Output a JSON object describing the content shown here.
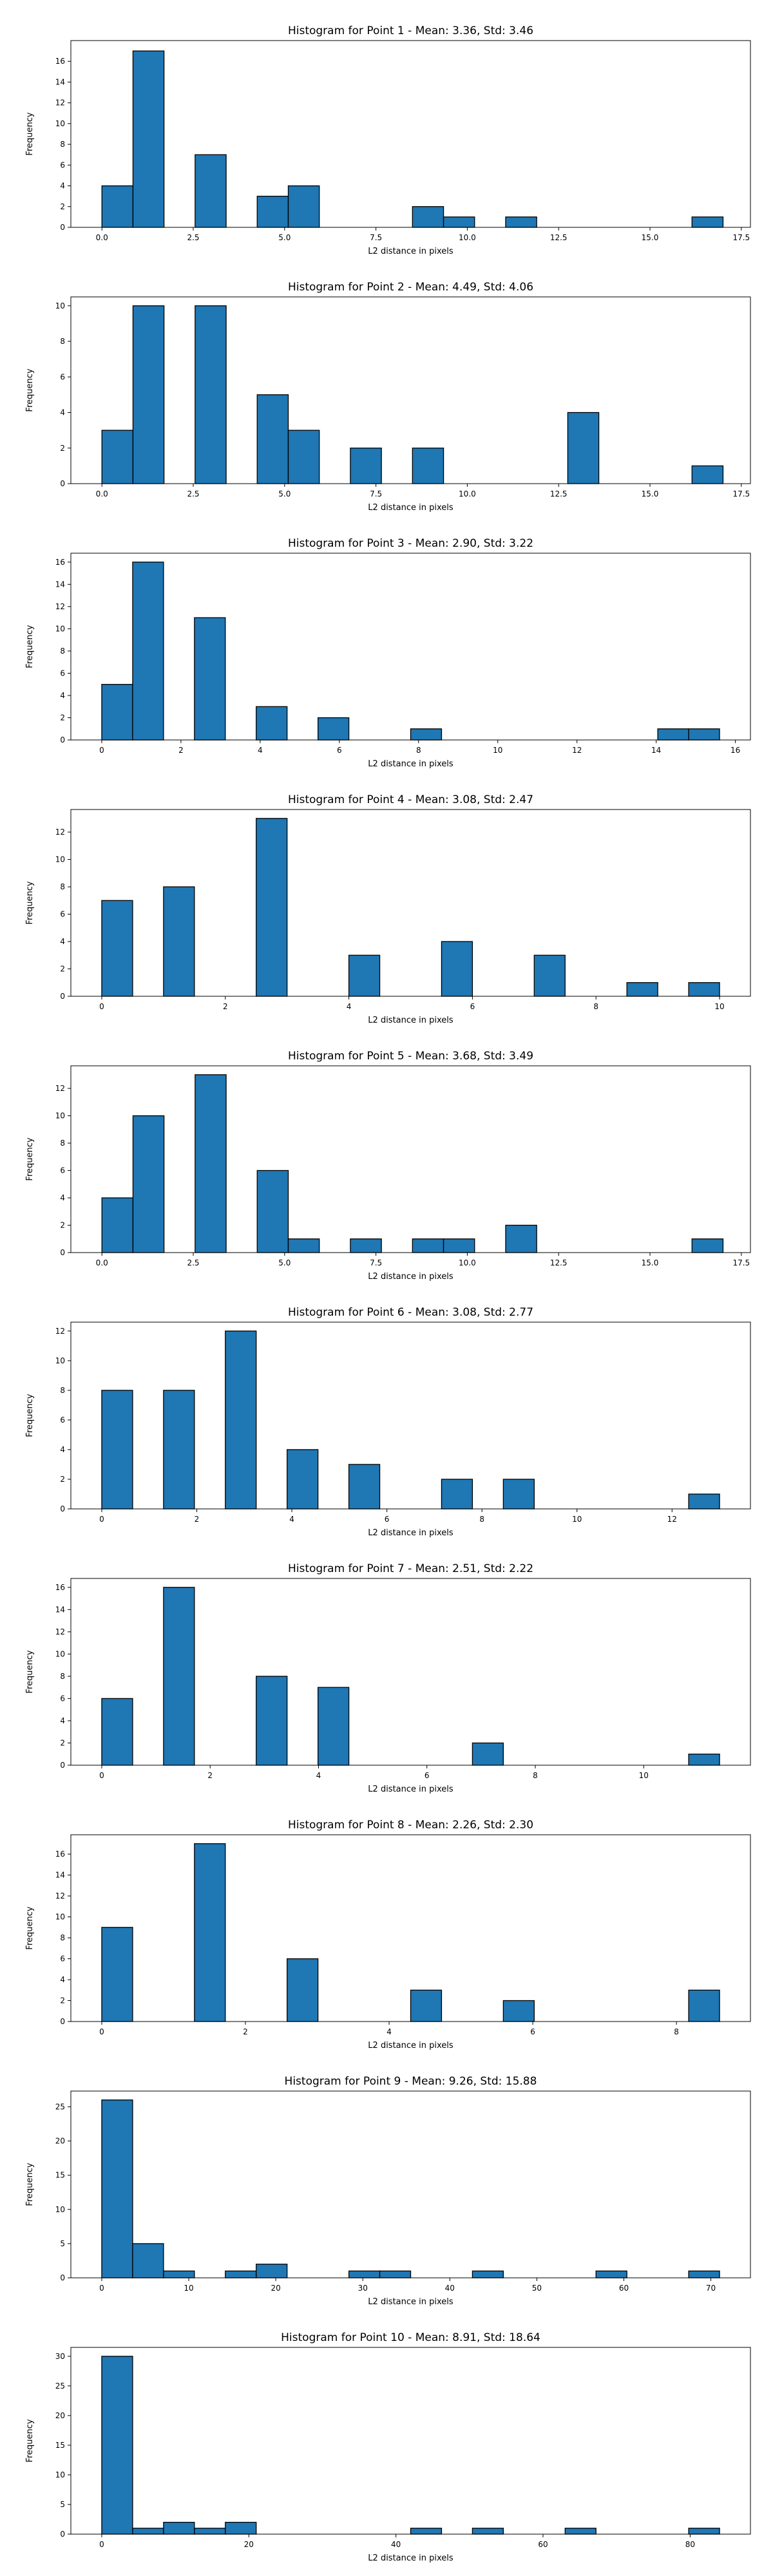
{
  "figure": {
    "bar_color": "#1f77b4",
    "edge_color": "#000000",
    "background": "#ffffff"
  },
  "chart_data": [
    {
      "type": "histogram",
      "title": "Histogram for Point 1 - Mean: 3.36, Std: 3.46",
      "xlabel": "L2 distance in pixels",
      "ylabel": "Frequency",
      "xlim": [
        -0.85,
        17.75
      ],
      "ylim": [
        0,
        18
      ],
      "xticks": [
        0.0,
        2.5,
        5.0,
        7.5,
        10.0,
        12.5,
        15.0,
        17.5
      ],
      "xtick_labels": [
        "0.0",
        "2.5",
        "5.0",
        "7.5",
        "10.0",
        "12.5",
        "15.0",
        "17.5"
      ],
      "yticks": [
        0,
        2,
        4,
        6,
        8,
        10,
        12,
        14,
        16
      ],
      "bins": [
        {
          "x0": 0.0,
          "x1": 0.85,
          "count": 4
        },
        {
          "x0": 0.85,
          "x1": 1.7,
          "count": 17
        },
        {
          "x0": 2.55,
          "x1": 3.4,
          "count": 7
        },
        {
          "x0": 4.25,
          "x1": 5.1,
          "count": 3
        },
        {
          "x0": 5.1,
          "x1": 5.95,
          "count": 4
        },
        {
          "x0": 8.5,
          "x1": 9.35,
          "count": 2
        },
        {
          "x0": 9.35,
          "x1": 10.2,
          "count": 1
        },
        {
          "x0": 11.05,
          "x1": 11.9,
          "count": 1
        },
        {
          "x0": 16.15,
          "x1": 17.0,
          "count": 1
        }
      ]
    },
    {
      "type": "histogram",
      "title": "Histogram for Point 2 - Mean: 4.49, Std: 4.06",
      "xlabel": "L2 distance in pixels",
      "ylabel": "Frequency",
      "xlim": [
        -0.85,
        17.75
      ],
      "ylim": [
        0,
        10.5
      ],
      "xticks": [
        0.0,
        2.5,
        5.0,
        7.5,
        10.0,
        12.5,
        15.0,
        17.5
      ],
      "xtick_labels": [
        "0.0",
        "2.5",
        "5.0",
        "7.5",
        "10.0",
        "12.5",
        "15.0",
        "17.5"
      ],
      "yticks": [
        0,
        2,
        4,
        6,
        8,
        10
      ],
      "bins": [
        {
          "x0": 0.0,
          "x1": 0.85,
          "count": 3
        },
        {
          "x0": 0.85,
          "x1": 1.7,
          "count": 10
        },
        {
          "x0": 2.55,
          "x1": 3.4,
          "count": 10
        },
        {
          "x0": 4.25,
          "x1": 5.1,
          "count": 5
        },
        {
          "x0": 5.1,
          "x1": 5.95,
          "count": 3
        },
        {
          "x0": 6.8,
          "x1": 7.65,
          "count": 2
        },
        {
          "x0": 8.5,
          "x1": 9.35,
          "count": 2
        },
        {
          "x0": 12.75,
          "x1": 13.6,
          "count": 4
        },
        {
          "x0": 16.15,
          "x1": 17.0,
          "count": 1
        }
      ]
    },
    {
      "type": "histogram",
      "title": "Histogram for Point 3 - Mean: 2.90, Std: 3.22",
      "xlabel": "L2 distance in pixels",
      "ylabel": "Frequency",
      "xlim": [
        -0.78,
        16.38
      ],
      "ylim": [
        0,
        16.8
      ],
      "xticks": [
        0,
        2,
        4,
        6,
        8,
        10,
        12,
        14,
        16
      ],
      "xtick_labels": [
        "0",
        "2",
        "4",
        "6",
        "8",
        "10",
        "12",
        "14",
        "16"
      ],
      "yticks": [
        0,
        2,
        4,
        6,
        8,
        10,
        12,
        14,
        16
      ],
      "bins": [
        {
          "x0": 0.0,
          "x1": 0.78,
          "count": 5
        },
        {
          "x0": 0.78,
          "x1": 1.56,
          "count": 16
        },
        {
          "x0": 2.34,
          "x1": 3.12,
          "count": 11
        },
        {
          "x0": 3.9,
          "x1": 4.68,
          "count": 3
        },
        {
          "x0": 5.46,
          "x1": 6.24,
          "count": 2
        },
        {
          "x0": 7.8,
          "x1": 8.58,
          "count": 1
        },
        {
          "x0": 14.04,
          "x1": 14.82,
          "count": 1
        },
        {
          "x0": 14.82,
          "x1": 15.6,
          "count": 1
        }
      ]
    },
    {
      "type": "histogram",
      "title": "Histogram for Point 4 - Mean: 3.08, Std: 2.47",
      "xlabel": "L2 distance in pixels",
      "ylabel": "Frequency",
      "xlim": [
        -0.5,
        10.5
      ],
      "ylim": [
        0,
        13.65
      ],
      "xticks": [
        0,
        2,
        4,
        6,
        8,
        10
      ],
      "xtick_labels": [
        "0",
        "2",
        "4",
        "6",
        "8",
        "10"
      ],
      "yticks": [
        0,
        2,
        4,
        6,
        8,
        10,
        12
      ],
      "bins": [
        {
          "x0": 0.0,
          "x1": 0.5,
          "count": 7
        },
        {
          "x0": 1.0,
          "x1": 1.5,
          "count": 8
        },
        {
          "x0": 2.5,
          "x1": 3.0,
          "count": 13
        },
        {
          "x0": 4.0,
          "x1": 4.5,
          "count": 3
        },
        {
          "x0": 5.5,
          "x1": 6.0,
          "count": 4
        },
        {
          "x0": 7.0,
          "x1": 7.5,
          "count": 3
        },
        {
          "x0": 8.5,
          "x1": 9.0,
          "count": 1
        },
        {
          "x0": 9.5,
          "x1": 10.0,
          "count": 1
        }
      ]
    },
    {
      "type": "histogram",
      "title": "Histogram for Point 5 - Mean: 3.68, Std: 3.49",
      "xlabel": "L2 distance in pixels",
      "ylabel": "Frequency",
      "xlim": [
        -0.85,
        17.75
      ],
      "ylim": [
        0,
        13.65
      ],
      "xticks": [
        0.0,
        2.5,
        5.0,
        7.5,
        10.0,
        12.5,
        15.0,
        17.5
      ],
      "xtick_labels": [
        "0.0",
        "2.5",
        "5.0",
        "7.5",
        "10.0",
        "12.5",
        "15.0",
        "17.5"
      ],
      "yticks": [
        0,
        2,
        4,
        6,
        8,
        10,
        12
      ],
      "bins": [
        {
          "x0": 0.0,
          "x1": 0.85,
          "count": 4
        },
        {
          "x0": 0.85,
          "x1": 1.7,
          "count": 10
        },
        {
          "x0": 2.55,
          "x1": 3.4,
          "count": 13
        },
        {
          "x0": 4.25,
          "x1": 5.1,
          "count": 6
        },
        {
          "x0": 5.1,
          "x1": 5.95,
          "count": 1
        },
        {
          "x0": 6.8,
          "x1": 7.65,
          "count": 1
        },
        {
          "x0": 8.5,
          "x1": 9.35,
          "count": 1
        },
        {
          "x0": 9.35,
          "x1": 10.2,
          "count": 1
        },
        {
          "x0": 11.05,
          "x1": 11.9,
          "count": 2
        },
        {
          "x0": 16.15,
          "x1": 17.0,
          "count": 1
        }
      ]
    },
    {
      "type": "histogram",
      "title": "Histogram for Point 6 - Mean: 3.08, Std: 2.77",
      "xlabel": "L2 distance in pixels",
      "ylabel": "Frequency",
      "xlim": [
        -0.65,
        13.65
      ],
      "ylim": [
        0,
        12.6
      ],
      "xticks": [
        0,
        2,
        4,
        6,
        8,
        10,
        12
      ],
      "xtick_labels": [
        "0",
        "2",
        "4",
        "6",
        "8",
        "10",
        "12"
      ],
      "yticks": [
        0,
        2,
        4,
        6,
        8,
        10,
        12
      ],
      "bins": [
        {
          "x0": 0.0,
          "x1": 0.65,
          "count": 8
        },
        {
          "x0": 1.3,
          "x1": 1.95,
          "count": 8
        },
        {
          "x0": 2.6,
          "x1": 3.25,
          "count": 12
        },
        {
          "x0": 3.9,
          "x1": 4.55,
          "count": 4
        },
        {
          "x0": 5.2,
          "x1": 5.85,
          "count": 3
        },
        {
          "x0": 7.15,
          "x1": 7.8,
          "count": 2
        },
        {
          "x0": 8.45,
          "x1": 9.1,
          "count": 2
        },
        {
          "x0": 12.35,
          "x1": 13.0,
          "count": 1
        }
      ]
    },
    {
      "type": "histogram",
      "title": "Histogram for Point 7 - Mean: 2.51, Std: 2.22",
      "xlabel": "L2 distance in pixels",
      "ylabel": "Frequency",
      "xlim": [
        -0.57,
        11.97
      ],
      "ylim": [
        0,
        16.8
      ],
      "xticks": [
        0,
        2,
        4,
        6,
        8,
        10
      ],
      "xtick_labels": [
        "0",
        "2",
        "4",
        "6",
        "8",
        "10"
      ],
      "yticks": [
        0,
        2,
        4,
        6,
        8,
        10,
        12,
        14,
        16
      ],
      "bins": [
        {
          "x0": 0.0,
          "x1": 0.57,
          "count": 6
        },
        {
          "x0": 1.14,
          "x1": 1.71,
          "count": 16
        },
        {
          "x0": 2.85,
          "x1": 3.42,
          "count": 8
        },
        {
          "x0": 3.99,
          "x1": 4.56,
          "count": 7
        },
        {
          "x0": 6.84,
          "x1": 7.41,
          "count": 2
        },
        {
          "x0": 10.83,
          "x1": 11.4,
          "count": 1
        }
      ]
    },
    {
      "type": "histogram",
      "title": "Histogram for Point 8 - Mean: 2.26, Std: 2.30",
      "xlabel": "L2 distance in pixels",
      "ylabel": "Frequency",
      "xlim": [
        -0.43,
        9.03
      ],
      "ylim": [
        0,
        17.85
      ],
      "xticks": [
        0,
        2,
        4,
        6,
        8
      ],
      "xtick_labels": [
        "0",
        "2",
        "4",
        "6",
        "8"
      ],
      "yticks": [
        0,
        2,
        4,
        6,
        8,
        10,
        12,
        14,
        16
      ],
      "bins": [
        {
          "x0": 0.0,
          "x1": 0.43,
          "count": 9
        },
        {
          "x0": 1.29,
          "x1": 1.72,
          "count": 17
        },
        {
          "x0": 2.58,
          "x1": 3.01,
          "count": 6
        },
        {
          "x0": 4.3,
          "x1": 4.73,
          "count": 3
        },
        {
          "x0": 5.59,
          "x1": 6.02,
          "count": 2
        },
        {
          "x0": 8.17,
          "x1": 8.6,
          "count": 3
        }
      ]
    },
    {
      "type": "histogram",
      "title": "Histogram for Point 9 - Mean: 9.26, Std: 15.88",
      "xlabel": "L2 distance in pixels",
      "ylabel": "Frequency",
      "xlim": [
        -3.55,
        74.55
      ],
      "ylim": [
        0,
        27.3
      ],
      "xticks": [
        0,
        10,
        20,
        30,
        40,
        50,
        60,
        70
      ],
      "xtick_labels": [
        "0",
        "10",
        "20",
        "30",
        "40",
        "50",
        "60",
        "70"
      ],
      "yticks": [
        0,
        5,
        10,
        15,
        20,
        25
      ],
      "bins": [
        {
          "x0": 0.0,
          "x1": 3.55,
          "count": 26
        },
        {
          "x0": 3.55,
          "x1": 7.1,
          "count": 5
        },
        {
          "x0": 7.1,
          "x1": 10.65,
          "count": 1
        },
        {
          "x0": 14.2,
          "x1": 17.75,
          "count": 1
        },
        {
          "x0": 17.75,
          "x1": 21.3,
          "count": 2
        },
        {
          "x0": 28.4,
          "x1": 31.95,
          "count": 1
        },
        {
          "x0": 31.95,
          "x1": 35.5,
          "count": 1
        },
        {
          "x0": 42.6,
          "x1": 46.15,
          "count": 1
        },
        {
          "x0": 56.8,
          "x1": 60.35,
          "count": 1
        },
        {
          "x0": 67.45,
          "x1": 71.0,
          "count": 1
        }
      ]
    },
    {
      "type": "histogram",
      "title": "Histogram for Point 10 - Mean: 8.91, Std: 18.64",
      "xlabel": "L2 distance in pixels",
      "ylabel": "Frequency",
      "xlim": [
        -4.2,
        88.2
      ],
      "ylim": [
        0,
        31.5
      ],
      "xticks": [
        0,
        20,
        40,
        60,
        80
      ],
      "xtick_labels": [
        "0",
        "20",
        "40",
        "60",
        "80"
      ],
      "yticks": [
        0,
        5,
        10,
        15,
        20,
        25,
        30
      ],
      "bins": [
        {
          "x0": 0.0,
          "x1": 4.2,
          "count": 30
        },
        {
          "x0": 4.2,
          "x1": 8.4,
          "count": 1
        },
        {
          "x0": 8.4,
          "x1": 12.6,
          "count": 2
        },
        {
          "x0": 12.6,
          "x1": 16.8,
          "count": 1
        },
        {
          "x0": 16.8,
          "x1": 21.0,
          "count": 2
        },
        {
          "x0": 42.0,
          "x1": 46.2,
          "count": 1
        },
        {
          "x0": 50.4,
          "x1": 54.6,
          "count": 1
        },
        {
          "x0": 63.0,
          "x1": 67.2,
          "count": 1
        },
        {
          "x0": 79.8,
          "x1": 84.0,
          "count": 1
        }
      ]
    }
  ]
}
